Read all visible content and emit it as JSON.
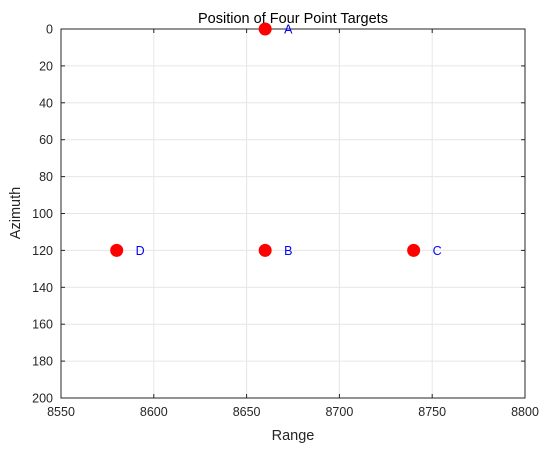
{
  "chart_data": {
    "type": "scatter",
    "title": "Position of Four Point Targets",
    "xlabel": "Range",
    "ylabel": "Azimuth",
    "xlim": [
      8550,
      8800
    ],
    "ylim": [
      0,
      200
    ],
    "y_reversed": true,
    "xticks": [
      "8550",
      "8600",
      "8650",
      "8700",
      "8750",
      "8800"
    ],
    "yticks": [
      "0",
      "20",
      "40",
      "60",
      "80",
      "100",
      "120",
      "140",
      "160",
      "180",
      "200"
    ],
    "grid": true,
    "marker_color": "#ff0000",
    "annotation_color": "#0000ff",
    "points": [
      {
        "label": "A",
        "x": 8660,
        "y": 0
      },
      {
        "label": "B",
        "x": 8660,
        "y": 120
      },
      {
        "label": "C",
        "x": 8740,
        "y": 120
      },
      {
        "label": "D",
        "x": 8580,
        "y": 120
      }
    ]
  }
}
